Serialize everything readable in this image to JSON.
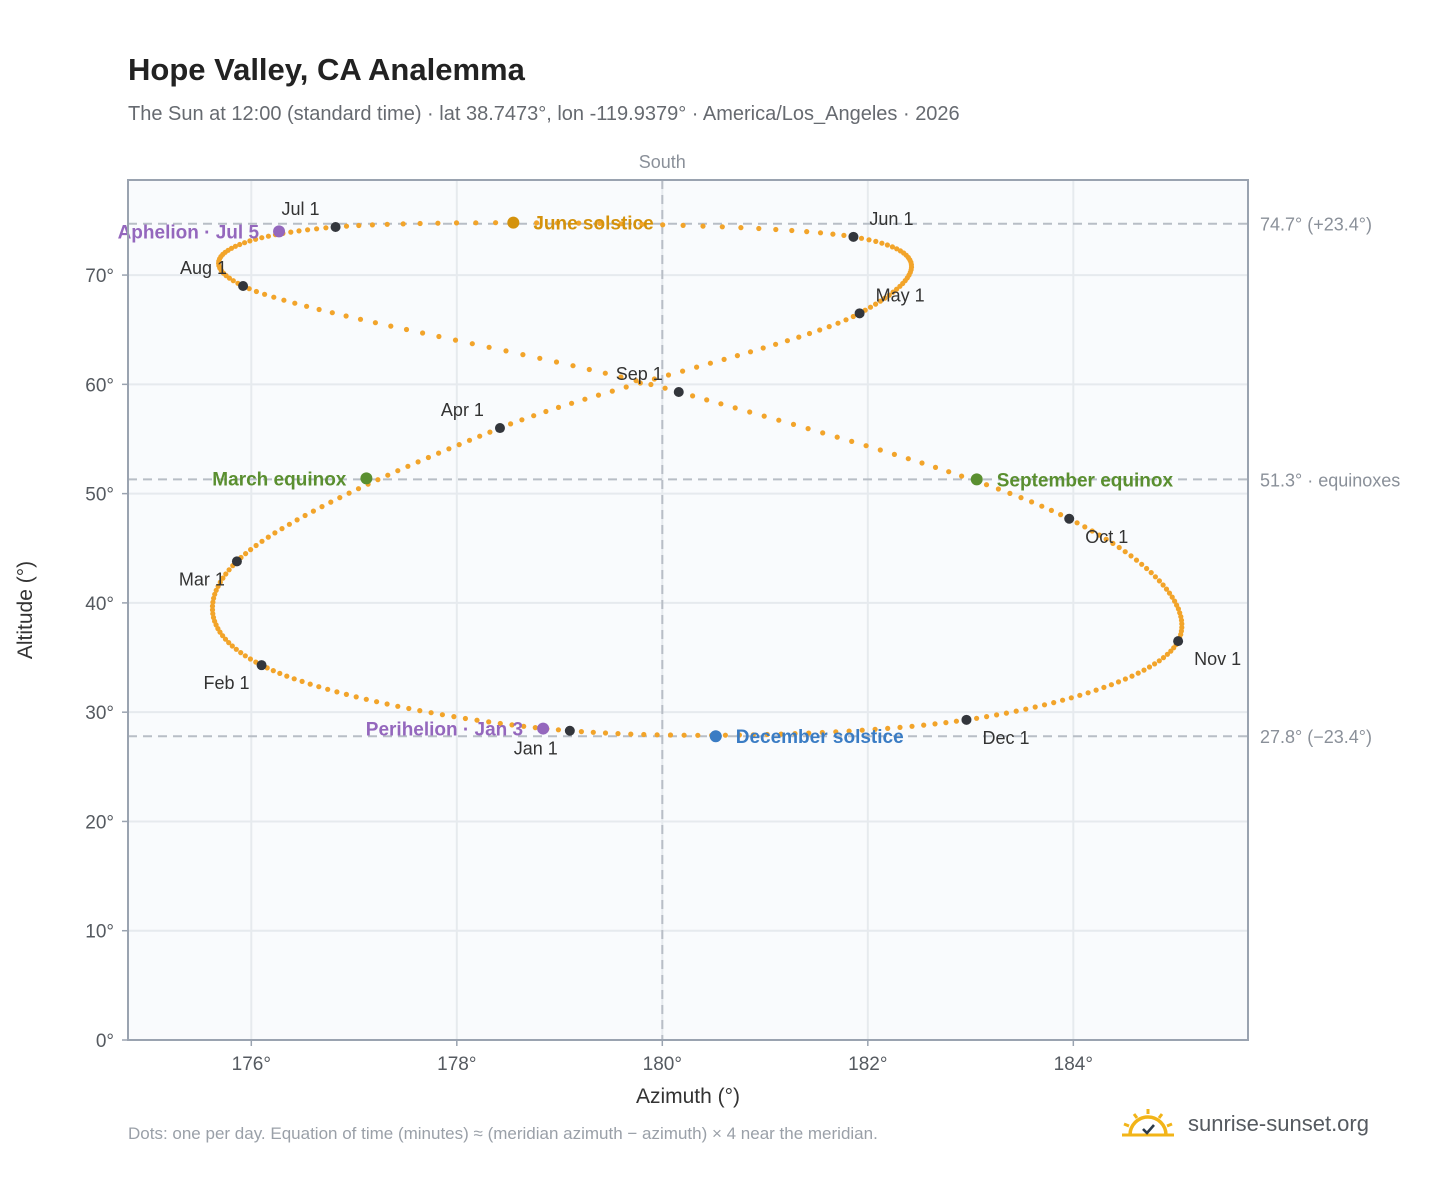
{
  "header": {
    "title": "Hope Valley, CA Analemma",
    "subtitle": "The Sun at 12:00 (standard time) · lat 38.7473°, lon -119.9379° · America/Los_Angeles · 2026"
  },
  "footnote": "Dots: one per day. Equation of time (minutes) ≈ (meridian azimuth − azimuth) × 4 near the meridian.",
  "brand": {
    "name": "sunrise-sunset.org",
    "icon": "sun-icon"
  },
  "colors": {
    "trace": "#f2a42a",
    "month_marker": "#33363c",
    "june": "#d4920c",
    "december": "#3a7cc4",
    "equinox": "#5a8f30",
    "apsis": "#9467bd",
    "grid": "#e6eaee",
    "plot_bg": "#f9fbfd",
    "frame": "#9aa3b0",
    "reference_line": "#b8bec6"
  },
  "chart_data": {
    "type": "scatter",
    "title": "Hope Valley, CA Analemma",
    "xlabel": "Azimuth (°)",
    "ylabel": "Altitude (°)",
    "xlim": [
      174.8,
      185.7
    ],
    "ylim": [
      0,
      78.7
    ],
    "x_ticks": [
      176,
      178,
      180,
      182,
      184
    ],
    "x_tick_labels": [
      "176°",
      "178°",
      "180°",
      "182°",
      "184°"
    ],
    "y_ticks": [
      0,
      10,
      20,
      30,
      40,
      50,
      60,
      70
    ],
    "y_tick_labels": [
      "0°",
      "10°",
      "20°",
      "30°",
      "40°",
      "50°",
      "60°",
      "70°"
    ],
    "grid": true,
    "meridian": {
      "azimuth": 180,
      "label": "South"
    },
    "reference_lines": [
      {
        "altitude": 74.7,
        "label": "74.7° (+23.4°)"
      },
      {
        "altitude": 51.3,
        "label": "51.3° · equinoxes"
      },
      {
        "altitude": 27.8,
        "label": "27.8° (−23.4°)"
      }
    ],
    "daily_series": {
      "name": "Sun at 12:00",
      "points_per_day": 1,
      "year_days": 365,
      "path": [
        {
          "day": 1,
          "azimuth": 179.1,
          "altitude": 28.3
        },
        {
          "day": 32,
          "azimuth": 176.1,
          "altitude": 34.3
        },
        {
          "day": 60,
          "azimuth": 175.86,
          "altitude": 43.8
        },
        {
          "day": 91,
          "azimuth": 178.42,
          "altitude": 56.0
        },
        {
          "day": 121,
          "azimuth": 181.92,
          "altitude": 66.5
        },
        {
          "day": 152,
          "azimuth": 181.86,
          "altitude": 73.5
        },
        {
          "day": 182,
          "azimuth": 176.82,
          "altitude": 74.4
        },
        {
          "day": 213,
          "azimuth": 175.92,
          "altitude": 69.0
        },
        {
          "day": 244,
          "azimuth": 180.16,
          "altitude": 59.3
        },
        {
          "day": 274,
          "azimuth": 183.96,
          "altitude": 47.7
        },
        {
          "day": 305,
          "azimuth": 185.02,
          "altitude": 36.5
        },
        {
          "day": 335,
          "azimuth": 182.96,
          "altitude": 29.3
        },
        {
          "day": 366,
          "azimuth": 179.1,
          "altitude": 28.3
        }
      ]
    },
    "month_markers": [
      {
        "label": "Jan 1",
        "azimuth": 179.1,
        "altitude": 28.3,
        "label_pos": "below-left"
      },
      {
        "label": "Feb 1",
        "azimuth": 176.1,
        "altitude": 34.3,
        "label_pos": "below-left"
      },
      {
        "label": "Mar 1",
        "azimuth": 175.86,
        "altitude": 43.8,
        "label_pos": "below-left"
      },
      {
        "label": "Apr 1",
        "azimuth": 178.42,
        "altitude": 56.0,
        "label_pos": "above-left"
      },
      {
        "label": "May 1",
        "azimuth": 181.92,
        "altitude": 66.5,
        "label_pos": "above-right"
      },
      {
        "label": "Jun 1",
        "azimuth": 181.86,
        "altitude": 73.5,
        "label_pos": "above-right"
      },
      {
        "label": "Jul 1",
        "azimuth": 176.82,
        "altitude": 74.4,
        "label_pos": "above-left"
      },
      {
        "label": "Aug 1",
        "azimuth": 175.92,
        "altitude": 69.0,
        "label_pos": "above-left"
      },
      {
        "label": "Sep 1",
        "azimuth": 180.16,
        "altitude": 59.3,
        "label_pos": "above-left"
      },
      {
        "label": "Oct 1",
        "azimuth": 183.96,
        "altitude": 47.7,
        "label_pos": "below-right"
      },
      {
        "label": "Nov 1",
        "azimuth": 185.02,
        "altitude": 36.5,
        "label_pos": "below-right"
      },
      {
        "label": "Dec 1",
        "azimuth": 182.96,
        "altitude": 29.3,
        "label_pos": "below-right"
      }
    ],
    "events": [
      {
        "label": "June solstice",
        "azimuth": 178.55,
        "altitude": 74.8,
        "color_key": "june",
        "side": "right"
      },
      {
        "label": "December solstice",
        "azimuth": 180.52,
        "altitude": 27.8,
        "color_key": "december",
        "side": "right"
      },
      {
        "label": "March equinox",
        "azimuth": 177.12,
        "altitude": 51.4,
        "color_key": "equinox",
        "side": "left"
      },
      {
        "label": "September equinox",
        "azimuth": 183.06,
        "altitude": 51.3,
        "color_key": "equinox",
        "side": "right"
      },
      {
        "label": "Aphelion · Jul 5",
        "azimuth": 176.27,
        "altitude": 74.0,
        "color_key": "apsis",
        "side": "left"
      },
      {
        "label": "Perihelion · Jan 3",
        "azimuth": 178.84,
        "altitude": 28.5,
        "color_key": "apsis",
        "side": "left"
      }
    ]
  }
}
